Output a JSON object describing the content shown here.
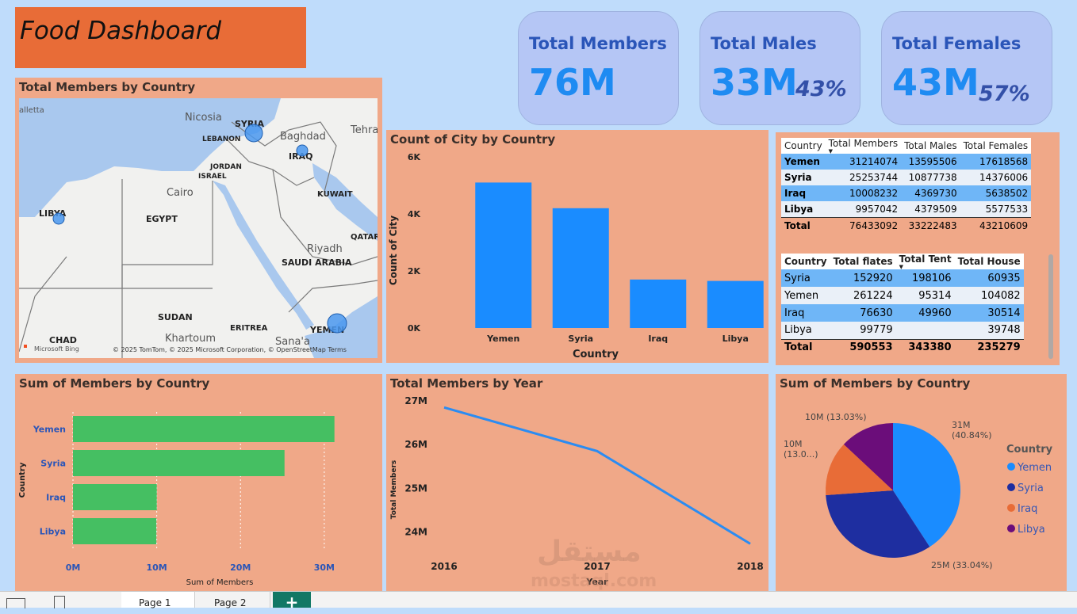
{
  "header": {
    "title": "Food Dashboard"
  },
  "cards": [
    {
      "label": "Total Members",
      "value": "76M",
      "pct": ""
    },
    {
      "label": "Total Males",
      "value": "33M",
      "pct": "43%"
    },
    {
      "label": "Total Females",
      "value": "43M",
      "pct": "57%"
    }
  ],
  "map": {
    "title": "Total Members by Country",
    "labels": {
      "syria": "SYRIA",
      "iraq": "IRAQ",
      "lebanon": "LEBANON",
      "jordan": "JORDAN",
      "israel": "ISRAEL",
      "kuwait": "KUWAIT",
      "egypt": "EGYPT",
      "libya": "LIBYA",
      "qatar": "QATAR",
      "saudi": "SAUDI ARABIA",
      "sudan": "SUDAN",
      "eritrea": "ERITREA",
      "chad": "CHAD",
      "yemen": "YEMEN",
      "nicosia": "Nicosia",
      "baghdad": "Baghdad",
      "cairo": "Cairo",
      "riyadh": "Riyadh",
      "khartoum": "Khartoum",
      "sanaa": "Sana'a",
      "tehran": "Tehra",
      "valletta": "alletta"
    },
    "credits": "© 2025 TomTom, © 2025 Microsoft Corporation, © OpenStreetMap  Terms",
    "bing": "Microsoft Bing"
  },
  "chart_data": [
    {
      "type": "bar",
      "title": "Count of City by Country",
      "xlabel": "Country",
      "ylabel": "Count of City",
      "categories": [
        "Yemen",
        "Syria",
        "Iraq",
        "Libya"
      ],
      "values": [
        5100,
        4200,
        1700,
        1650
      ],
      "ylim": [
        0,
        6000
      ],
      "yticks": [
        "0K",
        "2K",
        "4K",
        "6K"
      ],
      "color": "#1a8cff"
    },
    {
      "type": "bar",
      "orientation": "horizontal",
      "title": "Sum of Members by Country",
      "xlabel": "Sum of Members",
      "ylabel": "Country",
      "categories": [
        "Yemen",
        "Syria",
        "Iraq",
        "Libya"
      ],
      "values": [
        31214074,
        25253744,
        10008232,
        9957042
      ],
      "xlim": [
        0,
        32000000
      ],
      "xticks": [
        "0M",
        "10M",
        "20M",
        "30M"
      ],
      "color": "#45bf62"
    },
    {
      "type": "line",
      "title": "Total Members by Year",
      "xlabel": "Year",
      "ylabel": "Total Members",
      "x": [
        "2016",
        "2017",
        "2018"
      ],
      "values": [
        26850000,
        25850000,
        23730000
      ],
      "ylim": [
        23700000,
        27000000
      ],
      "yticks": [
        "24M",
        "25M",
        "26M",
        "27M"
      ],
      "color": "#2b8cf2"
    },
    {
      "type": "pie",
      "title": "Sum of Members by Country",
      "legend_title": "Country",
      "labels": [
        "Yemen",
        "Syria",
        "Iraq",
        "Libya"
      ],
      "values": [
        40.84,
        33.04,
        13.09,
        13.03
      ],
      "colors": [
        "#1a8cff",
        "#1e2ea0",
        "#e86c37",
        "#6b0d7a"
      ],
      "slice_labels": [
        "31M\n(40.84%)",
        "25M (33.04%)",
        "10M\n(13.0...)",
        "10M (13.03%)"
      ]
    }
  ],
  "table1": {
    "headers": [
      "Country",
      "Total Members",
      "Total Males",
      "Total Females"
    ],
    "rows": [
      [
        "Yemen",
        "31214074",
        "13595506",
        "17618568"
      ],
      [
        "Syria",
        "25253744",
        "10877738",
        "14376006"
      ],
      [
        "Iraq",
        "10008232",
        "4369730",
        "5638502"
      ],
      [
        "Libya",
        "9957042",
        "4379509",
        "5577533"
      ]
    ],
    "total": [
      "Total",
      "76433092",
      "33222483",
      "43210609"
    ]
  },
  "table2": {
    "headers": [
      "Country",
      "Total flates",
      "Total Tent",
      "Total House"
    ],
    "rows": [
      [
        "Syria",
        "152920",
        "198106",
        "60935"
      ],
      [
        "Yemen",
        "261224",
        "95314",
        "104082"
      ],
      [
        "Iraq",
        "76630",
        "49960",
        "30514"
      ],
      [
        "Libya",
        "99779",
        "",
        "39748"
      ]
    ],
    "total": [
      "Total",
      "590553",
      "343380",
      "235279"
    ]
  },
  "watermark": {
    "arabic": "مستقل",
    "latin": "mostaql.com"
  },
  "tabs": [
    "Page 1",
    "Page 2"
  ]
}
